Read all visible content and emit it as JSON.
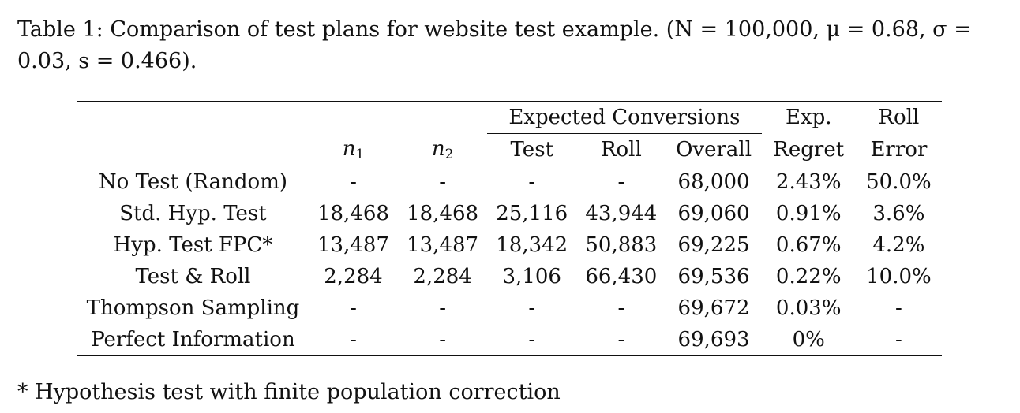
{
  "caption": {
    "label": "Table 1:",
    "text": "Comparison of test plans for website test example.",
    "params": "(N = 100,000, μ = 0.68, σ = 0.03, s = 0.466)."
  },
  "header": {
    "group_expected": "Expected Conversions",
    "exp_top": "Exp.",
    "exp_bottom": "Regret",
    "roll_top": "Roll",
    "roll_bottom": "Error",
    "n1_base": "n",
    "n1_sub": "1",
    "n2_base": "n",
    "n2_sub": "2",
    "test": "Test",
    "roll": "Roll",
    "overall": "Overall"
  },
  "rows": [
    {
      "label": "No Test (Random)",
      "n1": "-",
      "n2": "-",
      "test": "-",
      "roll": "-",
      "overall": "68,000",
      "regret": "2.43%",
      "error": "50.0%"
    },
    {
      "label": "Std. Hyp. Test",
      "n1": "18,468",
      "n2": "18,468",
      "test": "25,116",
      "roll": "43,944",
      "overall": "69,060",
      "regret": "0.91%",
      "error": "3.6%"
    },
    {
      "label": "Hyp. Test FPC*",
      "n1": "13,487",
      "n2": "13,487",
      "test": "18,342",
      "roll": "50,883",
      "overall": "69,225",
      "regret": "0.67%",
      "error": "4.2%"
    },
    {
      "label": "Test & Roll",
      "n1": "2,284",
      "n2": "2,284",
      "test": "3,106",
      "roll": "66,430",
      "overall": "69,536",
      "regret": "0.22%",
      "error": "10.0%"
    },
    {
      "label": "Thompson Sampling",
      "n1": "-",
      "n2": "-",
      "test": "-",
      "roll": "-",
      "overall": "69,672",
      "regret": "0.03%",
      "error": "-"
    },
    {
      "label": "Perfect Information",
      "n1": "-",
      "n2": "-",
      "test": "-",
      "roll": "-",
      "overall": "69,693",
      "regret": "0%",
      "error": "-"
    }
  ],
  "footnote": "* Hypothesis test with finite population correction"
}
